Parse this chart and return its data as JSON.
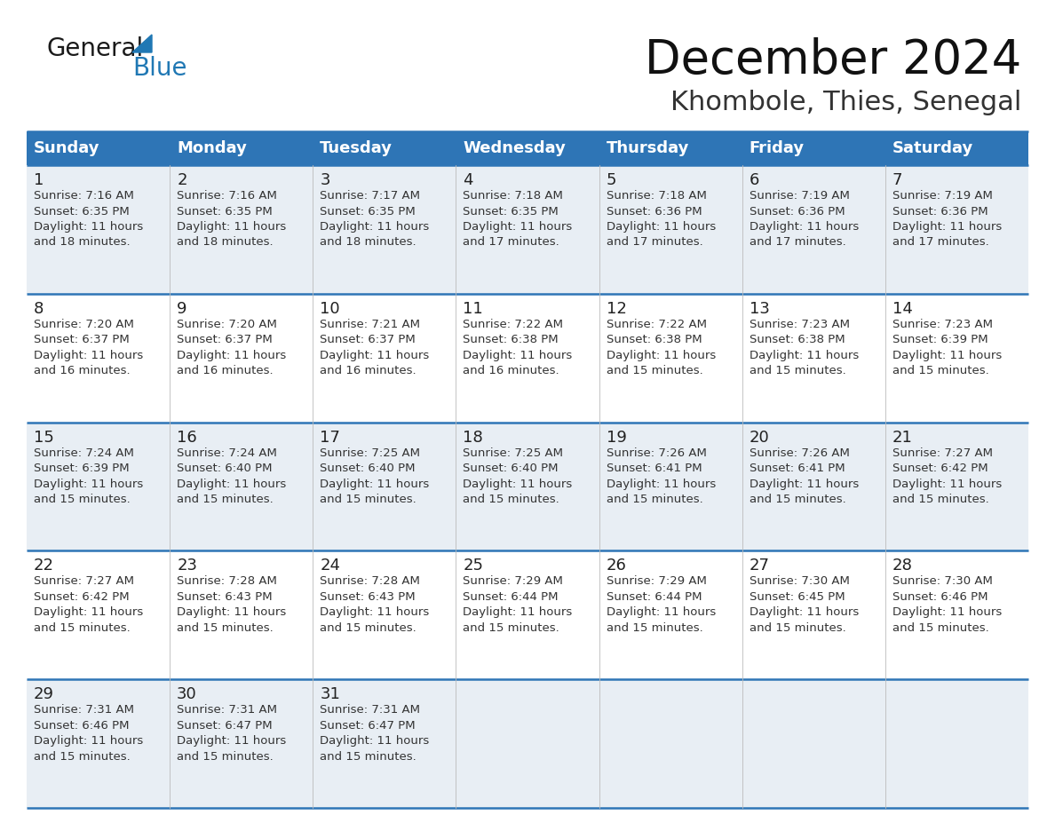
{
  "title": "December 2024",
  "subtitle": "Khombole, Thies, Senegal",
  "header_color": "#2E75B6",
  "header_text_color": "#FFFFFF",
  "border_color": "#2E75B6",
  "days_of_week": [
    "Sunday",
    "Monday",
    "Tuesday",
    "Wednesday",
    "Thursday",
    "Friday",
    "Saturday"
  ],
  "calendar": [
    [
      {
        "day": 1,
        "sunrise": "7:16 AM",
        "sunset": "6:35 PM",
        "daylight": "11 hours and 18 minutes."
      },
      {
        "day": 2,
        "sunrise": "7:16 AM",
        "sunset": "6:35 PM",
        "daylight": "11 hours and 18 minutes."
      },
      {
        "day": 3,
        "sunrise": "7:17 AM",
        "sunset": "6:35 PM",
        "daylight": "11 hours and 18 minutes."
      },
      {
        "day": 4,
        "sunrise": "7:18 AM",
        "sunset": "6:35 PM",
        "daylight": "11 hours and 17 minutes."
      },
      {
        "day": 5,
        "sunrise": "7:18 AM",
        "sunset": "6:36 PM",
        "daylight": "11 hours and 17 minutes."
      },
      {
        "day": 6,
        "sunrise": "7:19 AM",
        "sunset": "6:36 PM",
        "daylight": "11 hours and 17 minutes."
      },
      {
        "day": 7,
        "sunrise": "7:19 AM",
        "sunset": "6:36 PM",
        "daylight": "11 hours and 17 minutes."
      }
    ],
    [
      {
        "day": 8,
        "sunrise": "7:20 AM",
        "sunset": "6:37 PM",
        "daylight": "11 hours and 16 minutes."
      },
      {
        "day": 9,
        "sunrise": "7:20 AM",
        "sunset": "6:37 PM",
        "daylight": "11 hours and 16 minutes."
      },
      {
        "day": 10,
        "sunrise": "7:21 AM",
        "sunset": "6:37 PM",
        "daylight": "11 hours and 16 minutes."
      },
      {
        "day": 11,
        "sunrise": "7:22 AM",
        "sunset": "6:38 PM",
        "daylight": "11 hours and 16 minutes."
      },
      {
        "day": 12,
        "sunrise": "7:22 AM",
        "sunset": "6:38 PM",
        "daylight": "11 hours and 15 minutes."
      },
      {
        "day": 13,
        "sunrise": "7:23 AM",
        "sunset": "6:38 PM",
        "daylight": "11 hours and 15 minutes."
      },
      {
        "day": 14,
        "sunrise": "7:23 AM",
        "sunset": "6:39 PM",
        "daylight": "11 hours and 15 minutes."
      }
    ],
    [
      {
        "day": 15,
        "sunrise": "7:24 AM",
        "sunset": "6:39 PM",
        "daylight": "11 hours and 15 minutes."
      },
      {
        "day": 16,
        "sunrise": "7:24 AM",
        "sunset": "6:40 PM",
        "daylight": "11 hours and 15 minutes."
      },
      {
        "day": 17,
        "sunrise": "7:25 AM",
        "sunset": "6:40 PM",
        "daylight": "11 hours and 15 minutes."
      },
      {
        "day": 18,
        "sunrise": "7:25 AM",
        "sunset": "6:40 PM",
        "daylight": "11 hours and 15 minutes."
      },
      {
        "day": 19,
        "sunrise": "7:26 AM",
        "sunset": "6:41 PM",
        "daylight": "11 hours and 15 minutes."
      },
      {
        "day": 20,
        "sunrise": "7:26 AM",
        "sunset": "6:41 PM",
        "daylight": "11 hours and 15 minutes."
      },
      {
        "day": 21,
        "sunrise": "7:27 AM",
        "sunset": "6:42 PM",
        "daylight": "11 hours and 15 minutes."
      }
    ],
    [
      {
        "day": 22,
        "sunrise": "7:27 AM",
        "sunset": "6:42 PM",
        "daylight": "11 hours and 15 minutes."
      },
      {
        "day": 23,
        "sunrise": "7:28 AM",
        "sunset": "6:43 PM",
        "daylight": "11 hours and 15 minutes."
      },
      {
        "day": 24,
        "sunrise": "7:28 AM",
        "sunset": "6:43 PM",
        "daylight": "11 hours and 15 minutes."
      },
      {
        "day": 25,
        "sunrise": "7:29 AM",
        "sunset": "6:44 PM",
        "daylight": "11 hours and 15 minutes."
      },
      {
        "day": 26,
        "sunrise": "7:29 AM",
        "sunset": "6:44 PM",
        "daylight": "11 hours and 15 minutes."
      },
      {
        "day": 27,
        "sunrise": "7:30 AM",
        "sunset": "6:45 PM",
        "daylight": "11 hours and 15 minutes."
      },
      {
        "day": 28,
        "sunrise": "7:30 AM",
        "sunset": "6:46 PM",
        "daylight": "11 hours and 15 minutes."
      }
    ],
    [
      {
        "day": 29,
        "sunrise": "7:31 AM",
        "sunset": "6:46 PM",
        "daylight": "11 hours and 15 minutes."
      },
      {
        "day": 30,
        "sunrise": "7:31 AM",
        "sunset": "6:47 PM",
        "daylight": "11 hours and 15 minutes."
      },
      {
        "day": 31,
        "sunrise": "7:31 AM",
        "sunset": "6:47 PM",
        "daylight": "11 hours and 15 minutes."
      },
      null,
      null,
      null,
      null
    ]
  ],
  "logo_general_color": "#1a1a1a",
  "logo_blue_color": "#2078b4",
  "title_fontsize": 38,
  "subtitle_fontsize": 22,
  "header_fontsize": 13,
  "day_number_fontsize": 13,
  "cell_text_fontsize": 9.5,
  "row_bg_odd": "#DDEEFF",
  "row_bg_even": "#FFFFFF"
}
